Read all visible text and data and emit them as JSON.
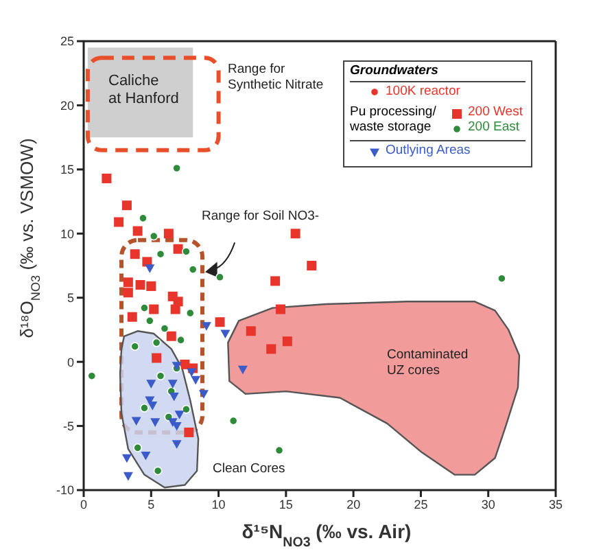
{
  "chart_data": {
    "type": "scatter",
    "xlabel": "δ¹⁵N$_{NO3}$ (‰ vs. Air)",
    "ylabel": "δ¹⁸O$_{NO3}$ (‰ vs. VSMOW)",
    "legend_title": "Groundwaters",
    "xlim": [
      0,
      35
    ],
    "xticks": [
      0,
      5,
      10,
      15,
      20,
      25,
      30,
      35
    ],
    "ylim": [
      -10,
      25
    ],
    "yticks": [
      -10,
      -5,
      0,
      5,
      10,
      15,
      20,
      25
    ],
    "grid": false,
    "legend": "top right",
    "annotations": [
      "Caliche at Hanford",
      "Range for Synthetic Nitrate",
      "Range for Soil NO3-",
      "Contaminated UZ cores",
      "Clean Cores",
      "Pu processing/ waste storage"
    ],
    "series": [
      {
        "name": "100K reactor",
        "color": "#e8352b",
        "marker": "circle"
      },
      {
        "name": "200 West",
        "color": "#e8352b",
        "marker": "square",
        "x": [
          1.7,
          3.2,
          2.6,
          4.0,
          6.3,
          3.8,
          7.0,
          4.7,
          15.7,
          16.9,
          3.3,
          4.2,
          5.0,
          3.3,
          6.6,
          7.0,
          6.8,
          5.2,
          3.6,
          10.1,
          6.5,
          5.4,
          7.5,
          8.1,
          7.8,
          14.2,
          14.6,
          12.4,
          13.9,
          15.1
        ],
        "values": [
          14.3,
          12.2,
          10.9,
          10.2,
          10.0,
          8.4,
          8.8,
          7.8,
          10.0,
          7.5,
          6.2,
          6.0,
          5.9,
          5.4,
          5.1,
          4.7,
          4.1,
          4.1,
          3.5,
          3.1,
          2.0,
          0.3,
          -0.2,
          -0.5,
          -5.5,
          6.3,
          4.1,
          2.4,
          1.0,
          1.6
        ]
      },
      {
        "name": "200 East",
        "color": "#2e8b3a",
        "marker": "circle",
        "x": [
          6.9,
          4.4,
          5.2,
          5.7,
          7.6,
          8.1,
          10.1,
          4.5,
          4.9,
          6.0,
          7.9,
          7.2,
          3.8,
          5.4,
          0.6,
          5.7,
          6.9,
          6.5,
          4.5,
          6.3,
          7.6,
          11.1,
          4.0,
          5.5,
          14.5,
          31.0
        ],
        "values": [
          15.1,
          11.2,
          9.8,
          8.4,
          8.6,
          7.2,
          6.6,
          4.2,
          3.2,
          2.6,
          3.8,
          1.7,
          1.2,
          1.5,
          -1.1,
          -1.1,
          -0.5,
          -2.3,
          -3.6,
          -4.3,
          -3.7,
          -4.6,
          -6.7,
          -8.5,
          -6.9,
          6.5
        ]
      },
      {
        "name": "Outlying Areas",
        "color": "#3a5bc8",
        "marker": "triangle",
        "x": [
          4.9,
          9.1,
          10.5,
          6.9,
          8.0,
          8.3,
          11.8,
          5.0,
          6.6,
          8.9,
          6.7,
          4.9,
          5.1,
          3.9,
          5.3,
          6.6,
          7.1,
          6.9,
          6.9,
          3.2,
          4.6,
          3.3
        ],
        "values": [
          7.3,
          2.8,
          2.2,
          -0.3,
          -0.8,
          -1.4,
          -0.6,
          -1.7,
          -1.7,
          -2.5,
          -2.7,
          -3.0,
          -3.4,
          -4.6,
          -4.7,
          -4.7,
          -4.1,
          -5.0,
          -6.4,
          -7.5,
          -7.3,
          -8.9
        ]
      }
    ]
  }
}
